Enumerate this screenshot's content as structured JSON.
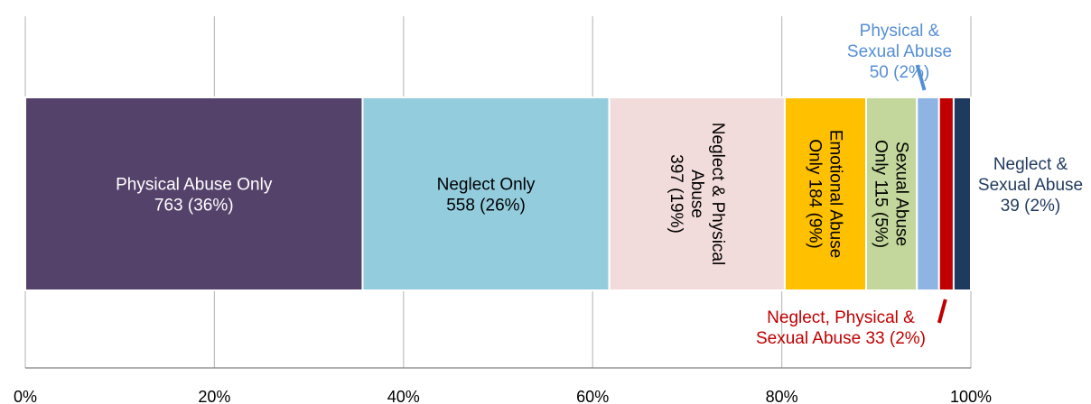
{
  "chart_data": {
    "type": "bar",
    "orientation": "horizontal-stacked-100",
    "xlim": [
      0,
      100
    ],
    "x_ticks": [
      "0%",
      "20%",
      "40%",
      "60%",
      "80%",
      "100%"
    ],
    "x_tick_values": [
      0,
      20,
      40,
      60,
      80,
      100
    ],
    "grid": true,
    "segments": [
      {
        "name": "Physical Abuse Only",
        "count": 763,
        "percent": 36,
        "label_lines": [
          "Physical Abuse Only",
          "763  (36%)"
        ],
        "color": "#55426B",
        "label_color": "#FFFFFF",
        "label_mode": "horizontal"
      },
      {
        "name": "Neglect Only",
        "count": 558,
        "percent": 26,
        "label_lines": [
          "Neglect Only",
          "558  (26%)"
        ],
        "color": "#93CDDD",
        "label_color": "#000000",
        "label_mode": "horizontal"
      },
      {
        "name": "Neglect & Physical Abuse",
        "count": 397,
        "percent": 19,
        "label_lines": [
          "Neglect & Physical",
          "Abuse",
          "397  (19%)"
        ],
        "color": "#F2DCDB",
        "label_color": "#000000",
        "label_mode": "vertical"
      },
      {
        "name": "Emotional Abuse Only",
        "count": 184,
        "percent": 9,
        "label_lines": [
          "Emotional Abuse",
          "Only 184  (9%)"
        ],
        "color": "#FFC000",
        "label_color": "#000000",
        "label_mode": "vertical"
      },
      {
        "name": "Sexual Abuse Only",
        "count": 115,
        "percent": 5,
        "label_lines": [
          "Sexual Abuse",
          "Only  115  (5%)"
        ],
        "color": "#C3D69B",
        "label_color": "#000000",
        "label_mode": "vertical"
      },
      {
        "name": "Physical & Sexual Abuse",
        "count": 50,
        "percent": 2,
        "label_lines": [
          "Physical &",
          "Sexual Abuse",
          "50 (2%)"
        ],
        "color": "#8EB4E3",
        "label_color": "#558ED5",
        "label_mode": "callout-top"
      },
      {
        "name": "Neglect, Physical & Sexual Abuse",
        "count": 33,
        "percent": 2,
        "label_lines": [
          "Neglect, Physical &",
          "Sexual Abuse 33 (2%)"
        ],
        "color": "#C00000",
        "label_color": "#C00000",
        "label_mode": "callout-bottom"
      },
      {
        "name": "Neglect & Sexual Abuse",
        "count": 39,
        "percent": 2,
        "label_lines": [
          "Neglect &",
          "Sexual Abuse",
          "39 (2%)"
        ],
        "color": "#1F3A5F",
        "label_color": "#1F3A5F",
        "label_mode": "callout-right"
      }
    ]
  }
}
